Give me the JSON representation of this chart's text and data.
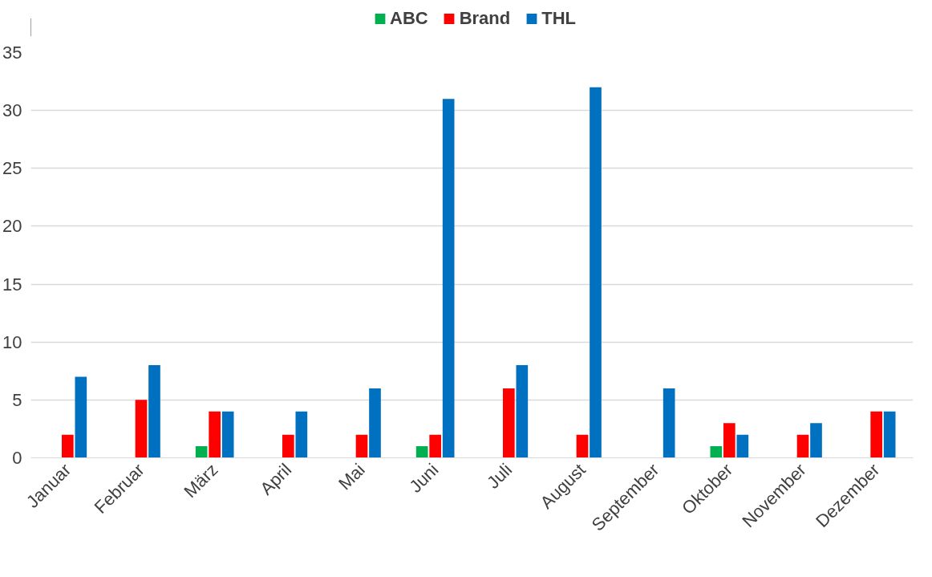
{
  "chart_data": {
    "type": "bar",
    "categories": [
      "Januar",
      "Februar",
      "März",
      "April",
      "Mai",
      "Juni",
      "Juli",
      "August",
      "September",
      "Oktober",
      "November",
      "Dezember"
    ],
    "series": [
      {
        "name": "ABC",
        "color": "#00b050",
        "values": [
          0,
          0,
          1,
          0,
          0,
          1,
          0,
          0,
          0,
          1,
          0,
          0
        ]
      },
      {
        "name": "Brand",
        "color": "#ff0000",
        "values": [
          2,
          5,
          4,
          2,
          2,
          2,
          6,
          2,
          0,
          3,
          2,
          4
        ]
      },
      {
        "name": "THL",
        "color": "#0070c0",
        "values": [
          7,
          8,
          4,
          4,
          6,
          31,
          8,
          32,
          6,
          2,
          3,
          4
        ]
      }
    ],
    "ylim": [
      0,
      35
    ],
    "yticks": [
      0,
      5,
      10,
      15,
      20,
      25,
      30,
      35
    ],
    "grid": "y",
    "legend": "top"
  }
}
